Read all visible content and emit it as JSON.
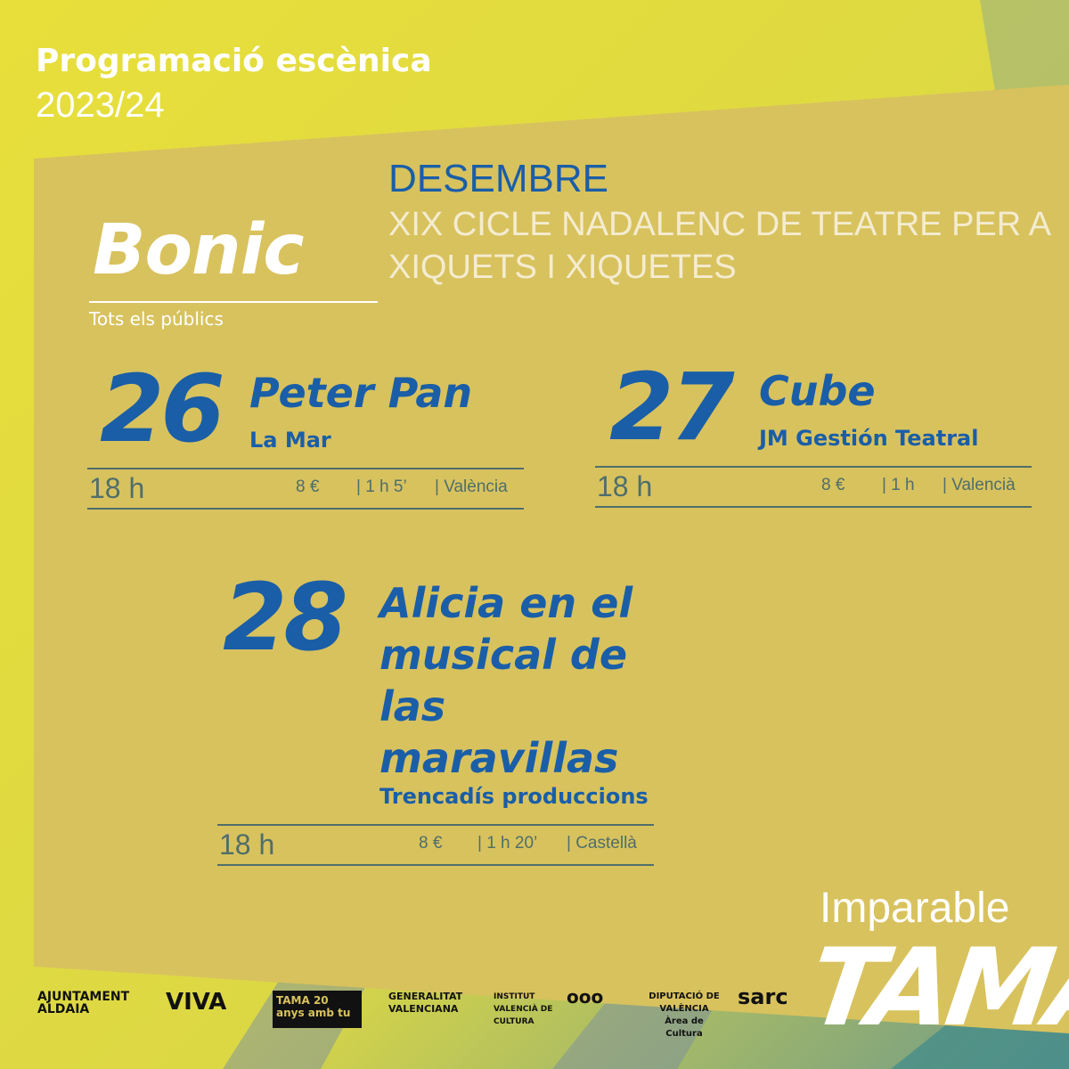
{
  "header": {
    "title": "Programació escènica",
    "season": "2023/24"
  },
  "show": {
    "name": "Bonic",
    "audience": "Tots els públics",
    "month": "DESEMBRE",
    "cycle": "XIX CICLE NADALENC DE TEATRE PER A XIQUETS I XIQUETES"
  },
  "events": [
    {
      "day": "26",
      "title": "Peter Pan",
      "company": "La Mar",
      "time": "18 h",
      "price": "8 €",
      "duration": "| 1 h 5’",
      "language": "| València"
    },
    {
      "day": "27",
      "title": "Cube",
      "company": "JM Gestión Teatral",
      "time": "18 h",
      "price": "8 €",
      "duration": "| 1 h",
      "language": "| Valencià"
    },
    {
      "day": "28",
      "title": "Alicia en el musical de las maravillas",
      "company": "Trencadís produccions",
      "time": "18 h",
      "price": "8 €",
      "duration": "| 1 h 20’",
      "language": "| Castellà"
    }
  ],
  "brand": {
    "tagline": "Imparable",
    "logo": "TAMA"
  },
  "sponsors": [
    "AJUNTAMENT ALDAIA",
    "VIVA",
    "TAMA 20 anys amb tu",
    "GENERALITAT VALENCIANA",
    "INSTITUT VALENCIÀ DE CULTURA",
    "ooo",
    "DIPUTACIÓ DE VALÈNCIA Àrea de Cultura",
    "sarc"
  ],
  "colors": {
    "panel": "#d8c25e",
    "background": "#e4dc3c",
    "accent_blue": "#1a5ea8",
    "line": "#4f6e6a"
  }
}
